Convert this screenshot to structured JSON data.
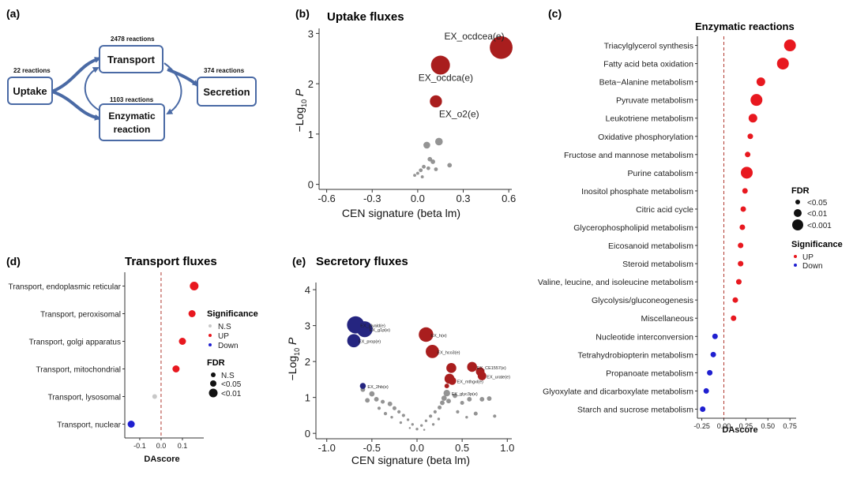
{
  "colors": {
    "up": "#e8181f",
    "down": "#1f1fd0",
    "ns": "#c8c8c8",
    "dark_red": "#a91e1e",
    "navy": "#252580",
    "gray": "#888888",
    "box_border": "#4a6aa5",
    "arrow": "#4a6aa5",
    "dashed_line": "#b0372e"
  },
  "panel_a": {
    "label": "(a)",
    "nodes": [
      {
        "id": "uptake",
        "title": "Uptake",
        "count": "22 reactions"
      },
      {
        "id": "transport",
        "title": "Transport",
        "count": "2478 reactions"
      },
      {
        "id": "enzymatic",
        "title_line1": "Enzymatic",
        "title_line2": "reaction",
        "count": "1103 reactions"
      },
      {
        "id": "secretion",
        "title": "Secretion",
        "count": "374 reactions"
      }
    ]
  },
  "panel_b": {
    "label": "(b)",
    "legend_dot": "●",
    "chart_data": {
      "type": "scatter",
      "title": "Uptake  fluxes",
      "xlabel": "CEN signature (beta lm)",
      "ylabel_prefix": "−Log",
      "ylabel_sub": "10",
      "ylabel_suffix": " P",
      "xlim": [
        -0.65,
        0.62
      ],
      "ylim": [
        -0.1,
        3.1
      ],
      "xticks": [
        "-0.6",
        "-0.3",
        "0.0",
        "0.3",
        "0.6"
      ],
      "xtick_values": [
        -0.6,
        -0.3,
        0.0,
        0.3,
        0.6
      ],
      "yticks": [
        "0",
        "1",
        "2",
        "3"
      ],
      "ytick_values": [
        0,
        1,
        2,
        3
      ],
      "points": [
        {
          "x": 0.55,
          "y": 2.72,
          "size": 3,
          "color": "dark_red",
          "label": "EX_ocdcea(e)"
        },
        {
          "x": 0.15,
          "y": 2.37,
          "size": 2.5,
          "color": "dark_red",
          "label": "EX_ocdca(e)"
        },
        {
          "x": 0.12,
          "y": 1.65,
          "size": 1.6,
          "color": "dark_red",
          "label": "EX_o2(e)"
        },
        {
          "x": 0.14,
          "y": 0.85,
          "size": 1,
          "color": "gray",
          "label": ""
        },
        {
          "x": 0.06,
          "y": 0.78,
          "size": 0.9,
          "color": "gray",
          "label": ""
        },
        {
          "x": 0.08,
          "y": 0.5,
          "size": 0.6,
          "color": "gray",
          "label": ""
        },
        {
          "x": 0.1,
          "y": 0.45,
          "size": 0.6,
          "color": "gray",
          "label": ""
        },
        {
          "x": 0.21,
          "y": 0.38,
          "size": 0.6,
          "color": "gray",
          "label": ""
        },
        {
          "x": 0.04,
          "y": 0.35,
          "size": 0.5,
          "color": "gray",
          "label": ""
        },
        {
          "x": 0.02,
          "y": 0.28,
          "size": 0.5,
          "color": "gray",
          "label": ""
        },
        {
          "x": 0.07,
          "y": 0.32,
          "size": 0.5,
          "color": "gray",
          "label": ""
        },
        {
          "x": 0.0,
          "y": 0.22,
          "size": 0.4,
          "color": "gray",
          "label": ""
        },
        {
          "x": 0.12,
          "y": 0.3,
          "size": 0.5,
          "color": "gray",
          "label": ""
        },
        {
          "x": -0.02,
          "y": 0.18,
          "size": 0.4,
          "color": "gray",
          "label": ""
        },
        {
          "x": 0.03,
          "y": 0.15,
          "size": 0.4,
          "color": "gray",
          "label": ""
        }
      ]
    }
  },
  "panel_c": {
    "label": "(c)",
    "chart_data": {
      "type": "dot",
      "title": "Enzymatic reactions",
      "xlabel": "DAscore",
      "xlim": [
        -0.3,
        0.82
      ],
      "xticks": [
        "-0.25",
        "0.00",
        "0.25",
        "0.50",
        "0.75"
      ],
      "xtick_values": [
        -0.25,
        0.0,
        0.25,
        0.5,
        0.75
      ],
      "categories": [
        "Triacylglycerol synthesis",
        "Fatty acid beta oxidation",
        "Beta−Alanine metabolism",
        "Pyruvate metabolism",
        "Leukotriene metabolism",
        "Oxidative phosphorylation",
        "Fructose and mannose metabolism",
        "Purine catabolism",
        "Inositol phosphate metabolism",
        "Citric acid cycle",
        "Glycerophospholipid metabolism",
        "Eicosanoid metabolism",
        "Steroid metabolism",
        "Valine, leucine, and isoleucine metabolism",
        "Glycolysis/gluconeogenesis",
        "Miscellaneous",
        "Nucleotide interconversion",
        "Tetrahydrobiopterin metabolism",
        "Propanoate metabolism",
        "Glyoxylate and dicarboxylate metabolism",
        "Starch and sucrose metabolism"
      ],
      "values": [
        0.75,
        0.67,
        0.42,
        0.37,
        0.33,
        0.3,
        0.27,
        0.26,
        0.24,
        0.22,
        0.21,
        0.19,
        0.19,
        0.17,
        0.13,
        0.11,
        -0.1,
        -0.12,
        -0.16,
        -0.2,
        -0.24
      ],
      "fdr_level": [
        3,
        3,
        2,
        3,
        2,
        1,
        1,
        3,
        1,
        1,
        1,
        1,
        1,
        1,
        1,
        1,
        1,
        1,
        1,
        1,
        1
      ],
      "significance": [
        "UP",
        "UP",
        "UP",
        "UP",
        "UP",
        "UP",
        "UP",
        "UP",
        "UP",
        "UP",
        "UP",
        "UP",
        "UP",
        "UP",
        "UP",
        "UP",
        "Down",
        "Down",
        "Down",
        "Down",
        "Down"
      ],
      "legend_fdr_title": "FDR",
      "legend_fdr": [
        "<0.05",
        "<0.01",
        "<0.001"
      ],
      "legend_sig_title": "Significance",
      "legend_sig": [
        "UP",
        "Down"
      ]
    }
  },
  "panel_d": {
    "label": "(d)",
    "chart_data": {
      "type": "dot",
      "title": "Transport fluxes",
      "xlabel": "DAscore",
      "xlim": [
        -0.17,
        0.2
      ],
      "xticks": [
        "-0.1",
        "0.0",
        "0.1"
      ],
      "xtick_values": [
        -0.1,
        0.0,
        0.1
      ],
      "categories": [
        "Transport, endoplasmic reticular",
        "Transport, peroxisomal",
        "Transport, golgi apparatus",
        "Transport, mitochondrial",
        "Transport, lysosomal",
        "Transport, nuclear"
      ],
      "values": [
        0.155,
        0.145,
        0.1,
        0.07,
        -0.03,
        -0.14
      ],
      "fdr_level": [
        3,
        2,
        2,
        2,
        1,
        2
      ],
      "significance": [
        "UP",
        "UP",
        "UP",
        "UP",
        "N.S",
        "Down"
      ],
      "legend_sig_title": "Significance",
      "legend_sig": [
        "N.S",
        "UP",
        "Down"
      ],
      "legend_fdr_title": "FDR",
      "legend_fdr": [
        "N.S",
        "<0.05",
        "<0.01"
      ]
    }
  },
  "panel_e": {
    "label": "(e)",
    "chart_data": {
      "type": "scatter",
      "title": "Secretory fluxes",
      "xlabel": "CEN signature (beta lm)",
      "ylabel_prefix": "−Log",
      "ylabel_sub": "10",
      "ylabel_suffix": " P",
      "xlim": [
        -1.12,
        1.05
      ],
      "ylim": [
        -0.15,
        4.2
      ],
      "xticks": [
        "-1.0",
        "-0.5",
        "0.0",
        "0.5",
        "1.0"
      ],
      "xtick_values": [
        -1.0,
        -0.5,
        0.0,
        0.5,
        1.0
      ],
      "yticks": [
        "0",
        "1",
        "2",
        "3",
        "4"
      ],
      "ytick_values": [
        0,
        1,
        2,
        3,
        4
      ],
      "points": [
        {
          "x": -0.68,
          "y": 3.02,
          "size": 2.6,
          "color": "navy",
          "label": "EX_glyald(e)"
        },
        {
          "x": -0.58,
          "y": 2.9,
          "size": 2.4,
          "color": "navy",
          "label": "EX_g1p(e)"
        },
        {
          "x": -0.7,
          "y": 2.58,
          "size": 2.0,
          "color": "navy",
          "label": "EX_prop(e)"
        },
        {
          "x": 0.1,
          "y": 2.75,
          "size": 2.2,
          "color": "dark_red",
          "label": "EX_h(e)"
        },
        {
          "x": 0.17,
          "y": 2.28,
          "size": 2.0,
          "color": "dark_red",
          "label": "EX_hco3(e)"
        },
        {
          "x": 0.61,
          "y": 1.85,
          "size": 1.5,
          "color": "dark_red",
          "label": "EX_CE1557(e)"
        },
        {
          "x": 0.38,
          "y": 1.82,
          "size": 1.5,
          "color": "dark_red",
          "label": ""
        },
        {
          "x": 0.7,
          "y": 1.72,
          "size": 1.3,
          "color": "dark_red",
          "label": ""
        },
        {
          "x": 0.72,
          "y": 1.6,
          "size": 1.3,
          "color": "dark_red",
          "label": "EX_urate(e)"
        },
        {
          "x": 0.36,
          "y": 1.52,
          "size": 1.5,
          "color": "dark_red",
          "label": ""
        },
        {
          "x": 0.39,
          "y": 1.46,
          "size": 1.2,
          "color": "dark_red",
          "label": "EX_mthgxl(e)"
        },
        {
          "x": 0.33,
          "y": 1.32,
          "size": 0.7,
          "color": "dark_red",
          "label": ""
        },
        {
          "x": 0.33,
          "y": 1.12,
          "size": 1.0,
          "color": "gray",
          "label": "EX_glyc3p(e)"
        },
        {
          "x": -0.6,
          "y": 1.32,
          "size": 0.9,
          "color": "navy",
          "label": "EX_2hb(e)"
        },
        {
          "x": -0.6,
          "y": 1.22,
          "size": 0.7,
          "color": "gray",
          "label": ""
        },
        {
          "x": -0.5,
          "y": 1.1,
          "size": 0.8,
          "color": "gray",
          "label": ""
        },
        {
          "x": -0.55,
          "y": 0.92,
          "size": 0.7,
          "color": "gray",
          "label": ""
        },
        {
          "x": -0.45,
          "y": 0.95,
          "size": 0.7,
          "color": "gray",
          "label": ""
        },
        {
          "x": -0.38,
          "y": 0.88,
          "size": 0.6,
          "color": "gray",
          "label": ""
        },
        {
          "x": -0.3,
          "y": 0.82,
          "size": 0.7,
          "color": "gray",
          "label": ""
        },
        {
          "x": -0.25,
          "y": 0.7,
          "size": 0.6,
          "color": "gray",
          "label": ""
        },
        {
          "x": -0.2,
          "y": 0.6,
          "size": 0.5,
          "color": "gray",
          "label": ""
        },
        {
          "x": -0.15,
          "y": 0.5,
          "size": 0.5,
          "color": "gray",
          "label": ""
        },
        {
          "x": -0.1,
          "y": 0.38,
          "size": 0.4,
          "color": "gray",
          "label": ""
        },
        {
          "x": -0.05,
          "y": 0.25,
          "size": 0.4,
          "color": "gray",
          "label": ""
        },
        {
          "x": 0.0,
          "y": 0.12,
          "size": 0.4,
          "color": "gray",
          "label": ""
        },
        {
          "x": 0.05,
          "y": 0.22,
          "size": 0.4,
          "color": "gray",
          "label": ""
        },
        {
          "x": 0.1,
          "y": 0.35,
          "size": 0.4,
          "color": "gray",
          "label": ""
        },
        {
          "x": 0.15,
          "y": 0.48,
          "size": 0.5,
          "color": "gray",
          "label": ""
        },
        {
          "x": 0.2,
          "y": 0.6,
          "size": 0.5,
          "color": "gray",
          "label": ""
        },
        {
          "x": 0.25,
          "y": 0.72,
          "size": 0.6,
          "color": "gray",
          "label": ""
        },
        {
          "x": 0.28,
          "y": 0.85,
          "size": 0.7,
          "color": "gray",
          "label": ""
        },
        {
          "x": 0.3,
          "y": 0.98,
          "size": 0.8,
          "color": "gray",
          "label": ""
        },
        {
          "x": 0.35,
          "y": 0.9,
          "size": 0.7,
          "color": "gray",
          "label": ""
        },
        {
          "x": 0.42,
          "y": 1.05,
          "size": 0.7,
          "color": "gray",
          "label": ""
        },
        {
          "x": 0.5,
          "y": 0.85,
          "size": 0.6,
          "color": "gray",
          "label": ""
        },
        {
          "x": 0.58,
          "y": 0.95,
          "size": 0.7,
          "color": "gray",
          "label": ""
        },
        {
          "x": 0.65,
          "y": 0.55,
          "size": 0.6,
          "color": "gray",
          "label": ""
        },
        {
          "x": 0.72,
          "y": 0.95,
          "size": 0.7,
          "color": "gray",
          "label": ""
        },
        {
          "x": 0.8,
          "y": 0.97,
          "size": 0.7,
          "color": "gray",
          "label": ""
        },
        {
          "x": 0.86,
          "y": 0.48,
          "size": 0.5,
          "color": "gray",
          "label": ""
        },
        {
          "x": -0.35,
          "y": 0.55,
          "size": 0.5,
          "color": "gray",
          "label": ""
        },
        {
          "x": -0.28,
          "y": 0.45,
          "size": 0.4,
          "color": "gray",
          "label": ""
        },
        {
          "x": -0.18,
          "y": 0.3,
          "size": 0.4,
          "color": "gray",
          "label": ""
        },
        {
          "x": -0.08,
          "y": 0.15,
          "size": 0.3,
          "color": "gray",
          "label": ""
        },
        {
          "x": 0.08,
          "y": 0.1,
          "size": 0.3,
          "color": "gray",
          "label": ""
        },
        {
          "x": 0.18,
          "y": 0.25,
          "size": 0.4,
          "color": "gray",
          "label": ""
        },
        {
          "x": 0.24,
          "y": 0.4,
          "size": 0.4,
          "color": "gray",
          "label": ""
        },
        {
          "x": -0.42,
          "y": 0.7,
          "size": 0.5,
          "color": "gray",
          "label": ""
        },
        {
          "x": 0.45,
          "y": 0.6,
          "size": 0.5,
          "color": "gray",
          "label": ""
        },
        {
          "x": 0.55,
          "y": 0.45,
          "size": 0.4,
          "color": "gray",
          "label": ""
        }
      ]
    }
  }
}
